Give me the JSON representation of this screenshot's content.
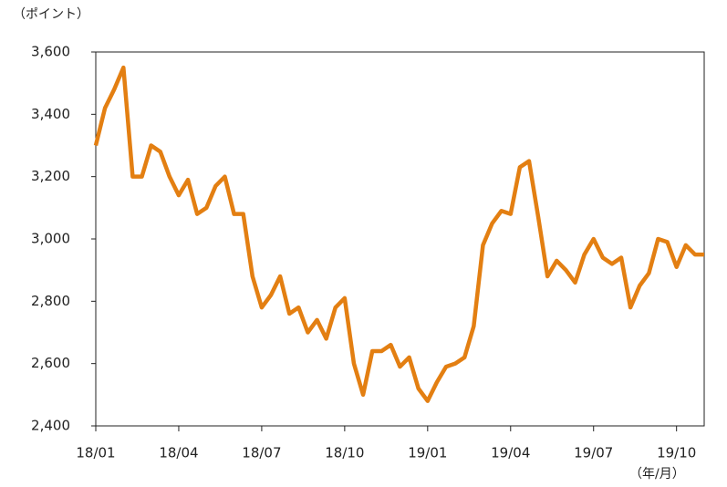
{
  "chart_data": {
    "type": "line",
    "y_unit": "（ポイント）",
    "x_unit": "（年/月）",
    "categories": [
      "18/01",
      null,
      null,
      null,
      null,
      null,
      null,
      null,
      null,
      "18/04",
      null,
      null,
      null,
      null,
      null,
      null,
      null,
      null,
      "18/07",
      null,
      null,
      null,
      null,
      null,
      null,
      null,
      null,
      "18/10",
      null,
      null,
      null,
      null,
      null,
      null,
      null,
      null,
      "19/01",
      null,
      null,
      null,
      null,
      null,
      null,
      null,
      null,
      "19/04",
      null,
      null,
      null,
      null,
      null,
      null,
      null,
      null,
      "19/07",
      null,
      null,
      null,
      null,
      null,
      null,
      null,
      null,
      "19/10",
      null,
      null,
      null
    ],
    "values": [
      3300,
      3420,
      3480,
      3550,
      3200,
      3200,
      3300,
      3280,
      3200,
      3140,
      3190,
      3080,
      3100,
      3170,
      3200,
      3080,
      3080,
      2880,
      2780,
      2820,
      2880,
      2760,
      2780,
      2700,
      2740,
      2680,
      2780,
      2810,
      2600,
      2500,
      2640,
      2640,
      2660,
      2590,
      2620,
      2520,
      2480,
      2540,
      2590,
      2600,
      2620,
      2720,
      2980,
      3050,
      3090,
      3080,
      3230,
      3250,
      3070,
      2880,
      2930,
      2900,
      2860,
      2950,
      3000,
      2940,
      2920,
      2940,
      2780,
      2850,
      2890,
      3000,
      2990,
      2910,
      2980,
      2950,
      2950
    ],
    "color": "#e37f12",
    "ylim": [
      2400,
      3600
    ],
    "yticks": [
      {
        "value": 2400,
        "label": "2,400"
      },
      {
        "value": 2600,
        "label": "2,600"
      },
      {
        "value": 2800,
        "label": "2,800"
      },
      {
        "value": 3000,
        "label": "3,000"
      },
      {
        "value": 3200,
        "label": "3,200"
      },
      {
        "value": 3400,
        "label": "3,400"
      },
      {
        "value": 3600,
        "label": "3,600"
      }
    ],
    "grid": false
  }
}
